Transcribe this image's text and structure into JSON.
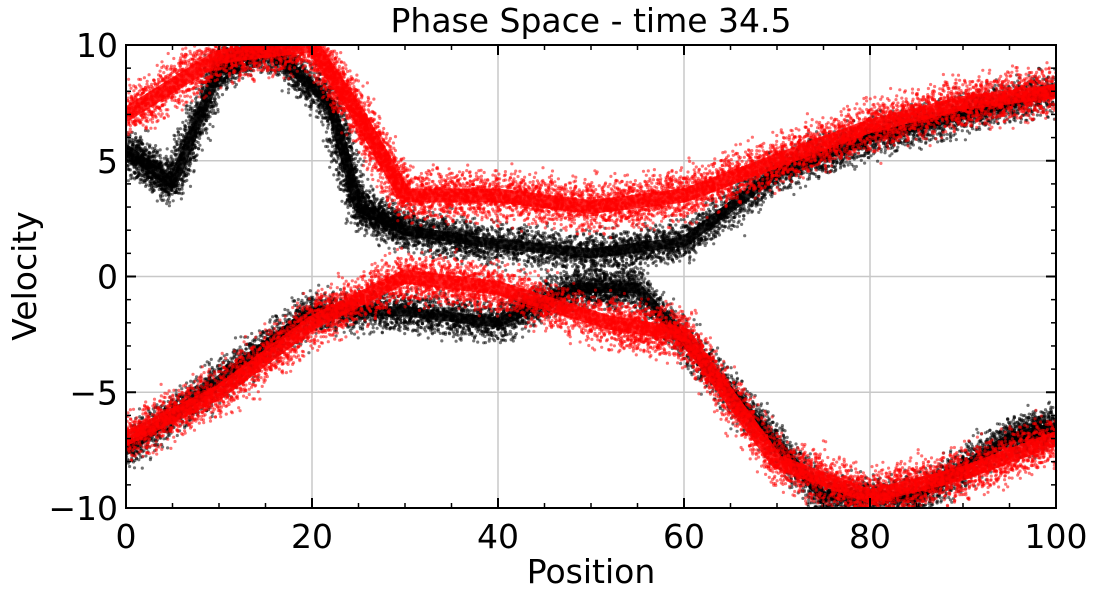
{
  "chart_data": {
    "type": "scatter",
    "title": "Phase Space - time 34.5",
    "xlabel": "Position",
    "ylabel": "Velocity",
    "xlim": [
      0,
      100
    ],
    "ylim": [
      -10,
      10
    ],
    "x_ticks": [
      0,
      20,
      40,
      60,
      80,
      100
    ],
    "x_tick_labels": [
      "0",
      "20",
      "40",
      "60",
      "80",
      "100"
    ],
    "y_ticks": [
      -10,
      -5,
      0,
      5,
      10
    ],
    "y_tick_labels": [
      "−10",
      "−5",
      "0",
      "5",
      "10"
    ],
    "grid": true,
    "legend": "none",
    "series_colors": [
      "#000000",
      "#ff0000"
    ],
    "series": [
      {
        "color": "#000000",
        "description_points": [
          [
            0,
            -7.5
          ],
          [
            10,
            -4.5
          ],
          [
            20,
            -1.5
          ],
          [
            30,
            -1.5
          ],
          [
            40,
            -2
          ],
          [
            48,
            -0.5
          ],
          [
            55,
            -0.5
          ],
          [
            65,
            -5
          ],
          [
            75,
            -9.5
          ],
          [
            85,
            -9.5
          ],
          [
            95,
            -7
          ],
          [
            100,
            -6.5
          ],
          [
            0,
            5.5
          ],
          [
            5,
            4
          ],
          [
            10,
            9
          ],
          [
            15,
            10
          ],
          [
            22,
            7.5
          ],
          [
            25,
            3
          ],
          [
            30,
            2
          ],
          [
            38,
            1.5
          ],
          [
            50,
            1
          ],
          [
            60,
            1.5
          ],
          [
            70,
            4.5
          ],
          [
            80,
            6
          ],
          [
            90,
            7
          ],
          [
            100,
            8
          ]
        ]
      },
      {
        "color": "#ff0000",
        "description_points": [
          [
            0,
            7
          ],
          [
            10,
            9.5
          ],
          [
            20,
            10
          ],
          [
            25,
            7
          ],
          [
            30,
            3.5
          ],
          [
            40,
            3.5
          ],
          [
            50,
            3
          ],
          [
            60,
            3.5
          ],
          [
            70,
            5
          ],
          [
            80,
            6.5
          ],
          [
            90,
            7.5
          ],
          [
            100,
            8
          ],
          [
            0,
            -7
          ],
          [
            10,
            -5
          ],
          [
            20,
            -2
          ],
          [
            30,
            0
          ],
          [
            40,
            -0.5
          ],
          [
            52,
            -2
          ],
          [
            60,
            -2.5
          ],
          [
            70,
            -8
          ],
          [
            80,
            -9.5
          ],
          [
            90,
            -8.5
          ],
          [
            100,
            -7
          ]
        ]
      }
    ]
  }
}
